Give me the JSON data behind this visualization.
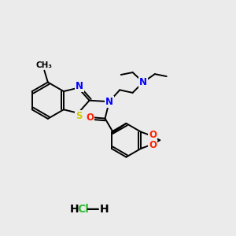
{
  "background_color": "#ebebeb",
  "atom_colors": {
    "N": "#0000ff",
    "O": "#ff2200",
    "S": "#cccc00",
    "C": "#000000",
    "Cl": "#33bb33",
    "H": "#000000"
  },
  "bond_color": "#000000",
  "bond_width": 1.4,
  "figsize": [
    3.0,
    3.0
  ],
  "dpi": 100,
  "font_size_atom": 8.5,
  "font_size_hcl": 10
}
